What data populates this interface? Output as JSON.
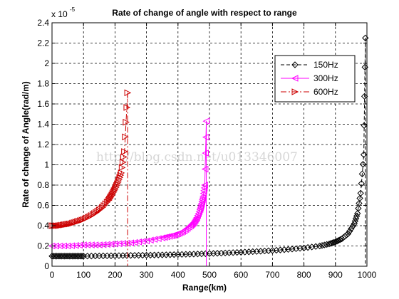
{
  "chart_data": {
    "type": "line",
    "title": "Rate of change of angle with respect to range",
    "xlabel": "Range(km)",
    "ylabel": "Rate of change of Angle(rad/m)",
    "y_multiplier": {
      "base": "x 10",
      "exponent": "-5"
    },
    "xlim": [
      0,
      1000
    ],
    "ylim": [
      0,
      2.4
    ],
    "x_ticks": [
      0,
      100,
      200,
      300,
      400,
      500,
      600,
      700,
      800,
      900,
      1000
    ],
    "y_ticks": [
      0,
      0.2,
      0.4,
      0.6,
      0.8,
      1,
      1.2,
      1.4,
      1.6,
      1.8,
      2,
      2.2,
      2.4
    ],
    "grid": true,
    "legend_position": "top-right",
    "watermark": "http://blog.csdn.net/u013346007",
    "series": [
      {
        "name": "150Hz",
        "color": "#000000",
        "marker": "diamond",
        "line_style": "dashed",
        "x": [
          0,
          20,
          40,
          60,
          80,
          100,
          150,
          200,
          250,
          300,
          350,
          400,
          450,
          500,
          550,
          600,
          650,
          700,
          750,
          800,
          850,
          880,
          900,
          920,
          940,
          960,
          970,
          980,
          990,
          995
        ],
        "y": [
          0.1,
          0.1,
          0.1,
          0.1,
          0.1,
          0.1,
          0.102,
          0.104,
          0.107,
          0.109,
          0.112,
          0.116,
          0.12,
          0.125,
          0.131,
          0.138,
          0.146,
          0.155,
          0.166,
          0.18,
          0.2,
          0.22,
          0.24,
          0.27,
          0.32,
          0.42,
          0.52,
          0.72,
          1.1,
          2.25
        ],
        "marker_points": [
          [
            880,
            0.22
          ],
          [
            900,
            0.24
          ],
          [
            920,
            0.27
          ],
          [
            940,
            0.32
          ],
          [
            960,
            0.42
          ],
          [
            970,
            0.52
          ],
          [
            980,
            0.72
          ],
          [
            995,
            2.25
          ]
        ],
        "drop_to_axis": 995
      },
      {
        "name": "300Hz",
        "color": "#ff00ff",
        "marker": "triangle-left",
        "line_style": "solid",
        "x": [
          0,
          50,
          100,
          150,
          200,
          250,
          300,
          350,
          380,
          400,
          420,
          440,
          450,
          460,
          470,
          475,
          480,
          485,
          490
        ],
        "y": [
          0.2,
          0.2,
          0.21,
          0.21,
          0.22,
          0.23,
          0.25,
          0.28,
          0.3,
          0.32,
          0.35,
          0.4,
          0.43,
          0.48,
          0.56,
          0.62,
          0.69,
          0.8,
          1.43
        ],
        "marker_points": [
          [
            440,
            0.4
          ],
          [
            450,
            0.43
          ],
          [
            460,
            0.48
          ],
          [
            470,
            0.56
          ],
          [
            480,
            0.69
          ],
          [
            490,
            1.43
          ]
        ],
        "drop_to_axis": 490
      },
      {
        "name": "600Hz",
        "color": "#cc0000",
        "marker": "triangle-right",
        "line_style": "dashdot",
        "x": [
          0,
          20,
          40,
          60,
          80,
          100,
          120,
          140,
          160,
          180,
          190,
          200,
          210,
          220,
          230,
          240
        ],
        "y": [
          0.4,
          0.4,
          0.41,
          0.42,
          0.44,
          0.46,
          0.49,
          0.53,
          0.58,
          0.65,
          0.7,
          0.76,
          0.83,
          0.92,
          1.13,
          1.71
        ],
        "marker_points": [
          [
            140,
            0.53
          ],
          [
            160,
            0.58
          ],
          [
            180,
            0.65
          ],
          [
            200,
            0.76
          ],
          [
            210,
            0.83
          ],
          [
            220,
            0.92
          ],
          [
            230,
            1.13
          ],
          [
            240,
            1.71
          ]
        ],
        "drop_to_axis": 240
      }
    ]
  }
}
